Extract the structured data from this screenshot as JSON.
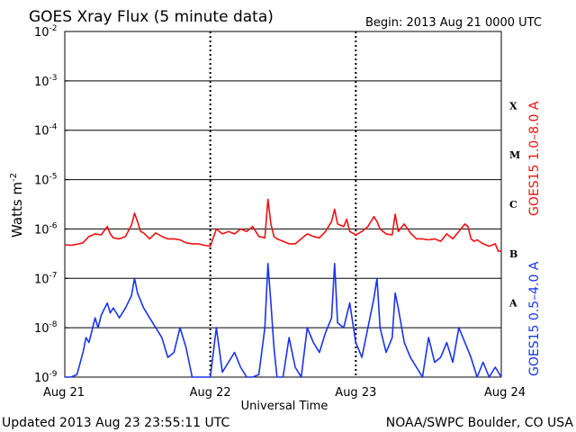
{
  "chart_data": {
    "type": "line",
    "title": "GOES Xray Flux (5 minute data)",
    "begin_label": "Begin:  2013 Aug 21 0000 UTC",
    "ylabel": "Watts m",
    "ylabel_sup": "-2",
    "xlabel": "Universal Time",
    "yscale": "log",
    "ylim": [
      1e-09,
      0.01
    ],
    "y_ticks": [
      {
        "exp": -2,
        "label": "10",
        "sup": "-2"
      },
      {
        "exp": -3,
        "label": "10",
        "sup": "-3"
      },
      {
        "exp": -4,
        "label": "10",
        "sup": "-4"
      },
      {
        "exp": -5,
        "label": "10",
        "sup": "-5"
      },
      {
        "exp": -6,
        "label": "10",
        "sup": "-6"
      },
      {
        "exp": -7,
        "label": "10",
        "sup": "-7"
      },
      {
        "exp": -8,
        "label": "10",
        "sup": "-8"
      },
      {
        "exp": -9,
        "label": "10",
        "sup": "-9"
      }
    ],
    "x_range_hours": [
      0,
      72
    ],
    "x_ticks": [
      {
        "hour": 0,
        "label": "Aug 21"
      },
      {
        "hour": 24,
        "label": "Aug 22"
      },
      {
        "hour": 48,
        "label": "Aug 23"
      },
      {
        "hour": 72,
        "label": "Aug 24"
      }
    ],
    "flare_classes": [
      {
        "label": "X",
        "exp": -3.5
      },
      {
        "label": "M",
        "exp": -4.5
      },
      {
        "label": "C",
        "exp": -5.5
      },
      {
        "label": "B",
        "exp": -6.5
      },
      {
        "label": "A",
        "exp": -7.5
      }
    ],
    "grid": true,
    "series": [
      {
        "name": "GOES15 1.0–8.0 A",
        "color": "#ee1111",
        "points": [
          [
            0,
            -6.32
          ],
          [
            1,
            -6.33
          ],
          [
            2,
            -6.31
          ],
          [
            3,
            -6.28
          ],
          [
            4,
            -6.15
          ],
          [
            5,
            -6.1
          ],
          [
            6,
            -6.12
          ],
          [
            7,
            -5.95
          ],
          [
            7.5,
            -6.1
          ],
          [
            8,
            -6.18
          ],
          [
            9,
            -6.2
          ],
          [
            10,
            -6.15
          ],
          [
            11,
            -5.92
          ],
          [
            11.5,
            -5.68
          ],
          [
            12,
            -5.85
          ],
          [
            12.5,
            -6.05
          ],
          [
            13,
            -6.08
          ],
          [
            14,
            -6.2
          ],
          [
            15,
            -6.08
          ],
          [
            16,
            -6.15
          ],
          [
            17,
            -6.2
          ],
          [
            18,
            -6.2
          ],
          [
            19,
            -6.22
          ],
          [
            20,
            -6.28
          ],
          [
            21,
            -6.3
          ],
          [
            22,
            -6.3
          ],
          [
            23,
            -6.33
          ],
          [
            24,
            -6.35
          ],
          [
            25,
            -6.0
          ],
          [
            26,
            -6.1
          ],
          [
            27,
            -6.05
          ],
          [
            28,
            -6.1
          ],
          [
            29,
            -6.0
          ],
          [
            30,
            -6.05
          ],
          [
            31,
            -5.95
          ],
          [
            32,
            -6.15
          ],
          [
            33,
            -6.18
          ],
          [
            33.5,
            -5.4
          ],
          [
            34,
            -5.9
          ],
          [
            34.5,
            -6.15
          ],
          [
            35,
            -6.2
          ],
          [
            36,
            -6.25
          ],
          [
            37,
            -6.3
          ],
          [
            38,
            -6.3
          ],
          [
            39,
            -6.2
          ],
          [
            40,
            -6.1
          ],
          [
            41,
            -6.15
          ],
          [
            42,
            -6.18
          ],
          [
            43,
            -6.05
          ],
          [
            44,
            -5.85
          ],
          [
            44.5,
            -5.6
          ],
          [
            45,
            -5.9
          ],
          [
            46,
            -5.95
          ],
          [
            46.5,
            -5.8
          ],
          [
            47,
            -6.05
          ],
          [
            48,
            -6.12
          ],
          [
            49,
            -6.05
          ],
          [
            50,
            -5.95
          ],
          [
            51,
            -5.75
          ],
          [
            51.5,
            -5.85
          ],
          [
            52,
            -6.0
          ],
          [
            53,
            -6.1
          ],
          [
            54,
            -6.12
          ],
          [
            54.5,
            -5.7
          ],
          [
            55,
            -6.05
          ],
          [
            56,
            -5.9
          ],
          [
            57,
            -6.08
          ],
          [
            58,
            -6.2
          ],
          [
            59,
            -6.2
          ],
          [
            60,
            -6.22
          ],
          [
            61,
            -6.2
          ],
          [
            62,
            -6.25
          ],
          [
            63,
            -6.1
          ],
          [
            64,
            -6.2
          ],
          [
            65,
            -6.05
          ],
          [
            66,
            -5.9
          ],
          [
            66.5,
            -5.95
          ],
          [
            67,
            -6.2
          ],
          [
            67.5,
            -6.25
          ],
          [
            68,
            -6.22
          ],
          [
            69,
            -6.3
          ],
          [
            70,
            -6.35
          ],
          [
            71,
            -6.3
          ],
          [
            71.5,
            -6.45
          ],
          [
            72,
            -6.45
          ]
        ]
      },
      {
        "name": "GOES15 0.5–4.0 A",
        "color": "#1a33ee",
        "points": [
          [
            0,
            -9.0
          ],
          [
            1,
            -9.0
          ],
          [
            2,
            -8.95
          ],
          [
            3,
            -8.5
          ],
          [
            3.5,
            -8.2
          ],
          [
            4,
            -8.3
          ],
          [
            5,
            -7.8
          ],
          [
            5.5,
            -8.0
          ],
          [
            6,
            -7.75
          ],
          [
            7,
            -7.5
          ],
          [
            7.5,
            -7.7
          ],
          [
            8,
            -7.6
          ],
          [
            9,
            -7.8
          ],
          [
            10,
            -7.6
          ],
          [
            11,
            -7.35
          ],
          [
            11.5,
            -7.0
          ],
          [
            12,
            -7.3
          ],
          [
            13,
            -7.6
          ],
          [
            14,
            -7.8
          ],
          [
            15,
            -8.0
          ],
          [
            16,
            -8.2
          ],
          [
            17,
            -8.6
          ],
          [
            18,
            -8.5
          ],
          [
            19,
            -8.0
          ],
          [
            20,
            -8.4
          ],
          [
            21,
            -9.0
          ],
          [
            22,
            -9.0
          ],
          [
            23,
            -9.0
          ],
          [
            24,
            -9.0
          ],
          [
            25,
            -8.0
          ],
          [
            26,
            -8.9
          ],
          [
            27,
            -8.7
          ],
          [
            28,
            -8.5
          ],
          [
            29,
            -8.8
          ],
          [
            30,
            -9.0
          ],
          [
            31,
            -9.0
          ],
          [
            32,
            -8.95
          ],
          [
            33,
            -8.0
          ],
          [
            33.5,
            -6.7
          ],
          [
            34,
            -7.5
          ],
          [
            34.5,
            -8.4
          ],
          [
            35,
            -9.0
          ],
          [
            36,
            -9.0
          ],
          [
            37,
            -8.2
          ],
          [
            38,
            -8.8
          ],
          [
            39,
            -9.0
          ],
          [
            40,
            -8.0
          ],
          [
            41,
            -8.3
          ],
          [
            42,
            -8.5
          ],
          [
            43,
            -8.1
          ],
          [
            44,
            -7.8
          ],
          [
            44.5,
            -6.7
          ],
          [
            45,
            -7.9
          ],
          [
            46,
            -8.0
          ],
          [
            47,
            -7.5
          ],
          [
            48,
            -8.3
          ],
          [
            49,
            -8.6
          ],
          [
            50,
            -8.0
          ],
          [
            51,
            -7.4
          ],
          [
            51.5,
            -7.0
          ],
          [
            52,
            -8.0
          ],
          [
            53,
            -8.5
          ],
          [
            54,
            -8.2
          ],
          [
            54.5,
            -7.3
          ],
          [
            55,
            -7.6
          ],
          [
            56,
            -8.3
          ],
          [
            57,
            -8.6
          ],
          [
            58,
            -8.8
          ],
          [
            59,
            -9.0
          ],
          [
            60,
            -8.2
          ],
          [
            61,
            -8.7
          ],
          [
            62,
            -8.6
          ],
          [
            63,
            -8.3
          ],
          [
            64,
            -8.7
          ],
          [
            65,
            -8.0
          ],
          [
            66,
            -8.3
          ],
          [
            67,
            -8.6
          ],
          [
            68,
            -9.0
          ],
          [
            69,
            -8.7
          ],
          [
            70,
            -9.0
          ],
          [
            71,
            -8.8
          ],
          [
            72,
            -9.0
          ]
        ]
      }
    ]
  },
  "footer": {
    "updated": "Updated 2013 Aug 23 23:55:11 UTC",
    "source": "NOAA/SWPC Boulder, CO USA"
  }
}
